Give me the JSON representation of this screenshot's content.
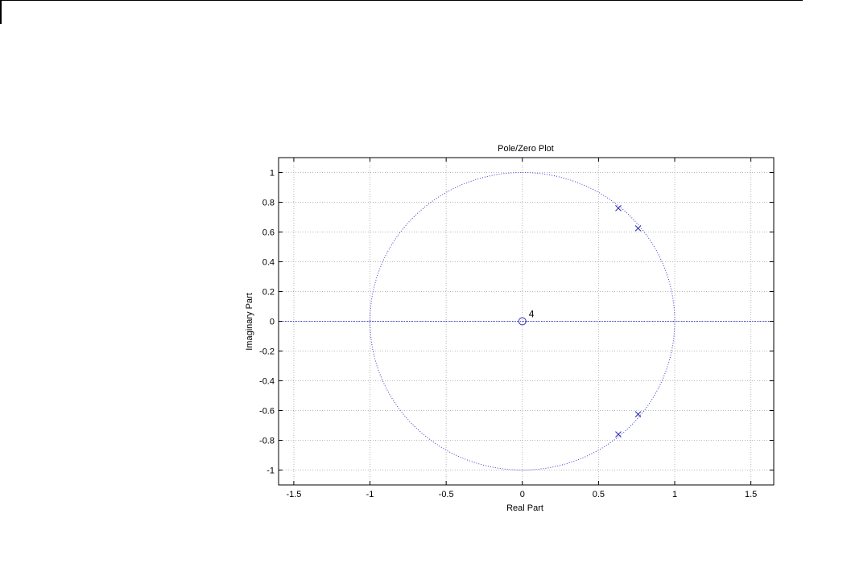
{
  "chart_data": {
    "type": "scatter",
    "title": "Pole/Zero Plot",
    "xlabel": "Real Part",
    "ylabel": "Imaginary Part",
    "xlim": [
      -1.6,
      1.65
    ],
    "ylim": [
      -1.1,
      1.1
    ],
    "xticks": [
      -1.5,
      -1,
      -0.5,
      0,
      0.5,
      1,
      1.5
    ],
    "xtick_labels": [
      "-1.5",
      "-1",
      "-0.5",
      "0",
      "0.5",
      "1",
      "1.5"
    ],
    "yticks": [
      1,
      0.8,
      0.6,
      0.4,
      0.2,
      0,
      -0.2,
      -0.4,
      -0.6,
      -0.8,
      -1
    ],
    "ytick_labels": [
      "1",
      "0.8",
      "0.6",
      "0.4",
      "0.2",
      "0",
      "-0.2",
      "-0.4",
      "-0.6",
      "-0.8",
      "-1"
    ],
    "grid": true,
    "unit_circle": true,
    "zeros": [
      {
        "x": 0,
        "y": 0,
        "multiplicity_label": "4"
      }
    ],
    "poles": [
      {
        "x": 0.63,
        "y": 0.76
      },
      {
        "x": 0.76,
        "y": 0.625
      },
      {
        "x": 0.76,
        "y": -0.625
      },
      {
        "x": 0.63,
        "y": -0.76
      }
    ],
    "colors": {
      "markers": "#2b2bb3",
      "circle": "#3a3ad0",
      "grid": "#b8b8b8",
      "axes": "#000000"
    }
  }
}
